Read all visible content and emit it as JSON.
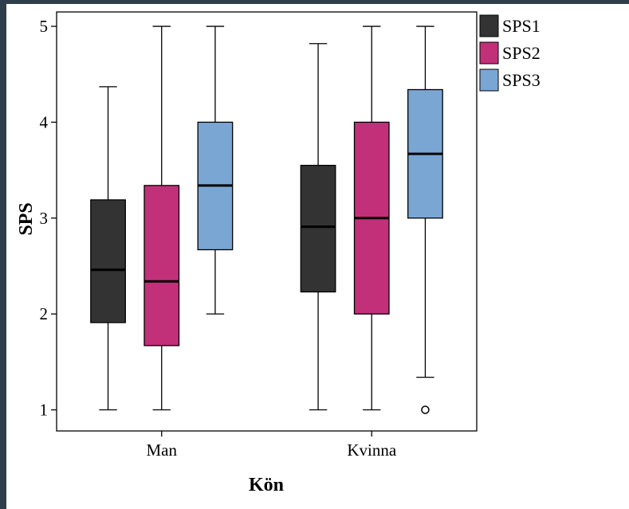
{
  "chart_data": {
    "type": "boxplot",
    "title": "",
    "xlabel": "Kön",
    "ylabel": "SPS",
    "ylim": [
      0.78,
      5.15
    ],
    "yticks": [
      1,
      2,
      3,
      4,
      5
    ],
    "categories": [
      "Man",
      "Kvinna"
    ],
    "legend_position": "top-right outside plot",
    "grid": false,
    "series": [
      {
        "name": "SPS1",
        "color": "#333333",
        "boxes": [
          {
            "min": 1.0,
            "q1": 1.91,
            "median": 2.46,
            "q3": 3.19,
            "max": 4.37,
            "outliers": []
          },
          {
            "min": 1.0,
            "q1": 2.23,
            "median": 2.91,
            "q3": 3.55,
            "max": 4.82,
            "outliers": []
          }
        ]
      },
      {
        "name": "SPS2",
        "color": "#c3307a",
        "boxes": [
          {
            "min": 1.0,
            "q1": 1.67,
            "median": 2.34,
            "q3": 3.34,
            "max": 5.0,
            "outliers": []
          },
          {
            "min": 1.0,
            "q1": 2.0,
            "median": 3.0,
            "q3": 4.0,
            "max": 5.0,
            "outliers": []
          }
        ]
      },
      {
        "name": "SPS3",
        "color": "#7aa6d4",
        "boxes": [
          {
            "min": 2.0,
            "q1": 2.67,
            "median": 3.34,
            "q3": 4.0,
            "max": 5.0,
            "outliers": []
          },
          {
            "min": 1.34,
            "q1": 3.0,
            "median": 3.67,
            "q3": 4.34,
            "max": 5.0,
            "outliers": [
              1.0
            ]
          }
        ]
      }
    ]
  }
}
